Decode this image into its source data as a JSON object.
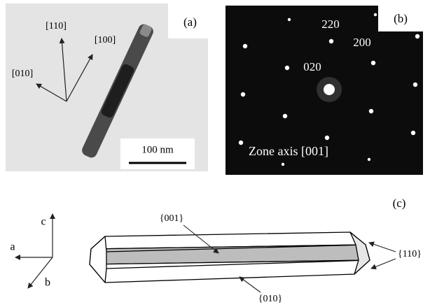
{
  "panel_a": {
    "label": "(a)",
    "directions": [
      "[110]",
      "[100]",
      "[010]"
    ],
    "scale_bar": "100 nm"
  },
  "panel_b": {
    "label": "(b)",
    "spots": [
      "220",
      "200",
      "020"
    ],
    "zone_axis": "Zone axis [001]"
  },
  "panel_c": {
    "label": "(c)",
    "axes": [
      "c",
      "a",
      "b"
    ],
    "faces": [
      "{001}",
      "{010}",
      "{110}"
    ]
  }
}
